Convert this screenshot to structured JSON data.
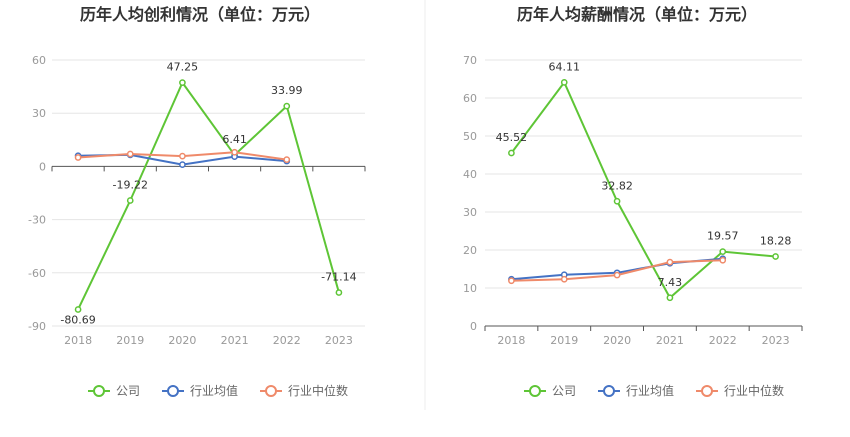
{
  "colors": {
    "company": "#5ec536",
    "industry_avg": "#4472c4",
    "industry_median": "#ef8a6a",
    "grid": "#e5e5e5",
    "axis": "#555555",
    "divider": "#eeeeee"
  },
  "chart_data": [
    {
      "type": "line",
      "title": "历年人均创利情况（单位：万元）",
      "categories": [
        "2018",
        "2019",
        "2020",
        "2021",
        "2022",
        "2023"
      ],
      "yticks": [
        60,
        30,
        0,
        -30,
        -60,
        -90
      ],
      "ylim": [
        -90,
        60
      ],
      "grid": true,
      "legend_position": "bottom",
      "series": [
        {
          "name": "公司",
          "color": "#5ec536",
          "values": [
            -80.69,
            -19.22,
            47.25,
            6.41,
            33.99,
            -71.14
          ],
          "labels": [
            "-80.69",
            "-19.22",
            "47.25",
            "6.41",
            "33.99",
            "-71.14"
          ]
        },
        {
          "name": "行业均值",
          "color": "#4472c4",
          "values": [
            6,
            6.5,
            1,
            5.5,
            3,
            null
          ]
        },
        {
          "name": "行业中位数",
          "color": "#ef8a6a",
          "values": [
            5,
            7,
            5.8,
            8,
            3.8,
            null
          ]
        }
      ]
    },
    {
      "type": "line",
      "title": "历年人均薪酬情况（单位：万元）",
      "categories": [
        "2018",
        "2019",
        "2020",
        "2021",
        "2022",
        "2023"
      ],
      "yticks": [
        70,
        60,
        50,
        40,
        30,
        20,
        10,
        0
      ],
      "ylim": [
        0,
        70
      ],
      "grid": true,
      "legend_position": "bottom",
      "series": [
        {
          "name": "公司",
          "color": "#5ec536",
          "values": [
            45.52,
            64.11,
            32.82,
            7.43,
            19.57,
            18.28
          ],
          "labels": [
            "45.52",
            "64.11",
            "32.82",
            "7.43",
            "19.57",
            "18.28"
          ]
        },
        {
          "name": "行业均值",
          "color": "#4472c4",
          "values": [
            12.3,
            13.5,
            14,
            16.5,
            17.7,
            null
          ]
        },
        {
          "name": "行业中位数",
          "color": "#ef8a6a",
          "values": [
            11.9,
            12.3,
            13.4,
            16.8,
            17.3,
            null
          ]
        }
      ]
    }
  ]
}
